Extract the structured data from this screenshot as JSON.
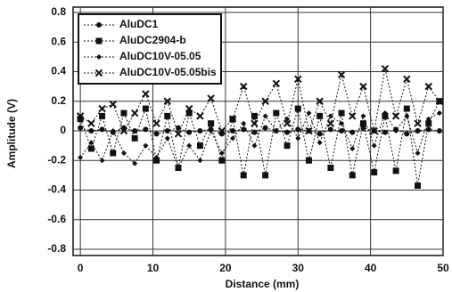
{
  "chart_data": {
    "type": "line",
    "x_label": "Distance (mm)",
    "y_label": "Amplitude (V)",
    "x": [
      0,
      1.5,
      3,
      4.5,
      6,
      7.5,
      9,
      10.5,
      12,
      13.5,
      15,
      16.5,
      18,
      19.5,
      21,
      22.5,
      24,
      25.5,
      27,
      28.5,
      30,
      31.5,
      33,
      34.5,
      36,
      37.5,
      39,
      40.5,
      42,
      43.5,
      45,
      46.5,
      48,
      49.5
    ],
    "series": [
      {
        "name": "AluDC1",
        "color": "#111111",
        "marker": "circle",
        "values": [
          0.02,
          0.0,
          0.01,
          -0.01,
          0.02,
          0.0,
          0.01,
          -0.02,
          0.0,
          0.02,
          -0.01,
          0.0,
          0.01,
          -0.02,
          0.0,
          0.01,
          -0.01,
          0.02,
          0.0,
          -0.01,
          0.01,
          0.0,
          -0.02,
          0.01,
          0.0,
          -0.01,
          0.02,
          0.0,
          -0.01,
          0.01,
          -0.02,
          0.0,
          0.01,
          0.0
        ]
      },
      {
        "name": "AluDC2904-b",
        "color": "#111111",
        "marker": "square",
        "values": [
          0.08,
          -0.12,
          0.1,
          -0.15,
          0.12,
          -0.05,
          0.15,
          -0.2,
          0.1,
          -0.25,
          0.12,
          -0.1,
          0.05,
          -0.2,
          0.08,
          -0.3,
          0.1,
          -0.3,
          0.12,
          -0.1,
          0.15,
          -0.2,
          0.1,
          -0.25,
          0.12,
          -0.3,
          0.05,
          -0.28,
          0.1,
          -0.27,
          0.15,
          -0.37,
          0.05,
          0.2
        ]
      },
      {
        "name": "AluDC10V-05.05",
        "color": "#111111",
        "marker": "diamond",
        "values": [
          -0.18,
          -0.08,
          -0.2,
          0.0,
          -0.15,
          -0.22,
          -0.1,
          -0.18,
          -0.05,
          -0.25,
          -0.1,
          -0.2,
          0.0,
          -0.15,
          -0.05,
          0.05,
          -0.1,
          0.1,
          0.0,
          0.08,
          -0.05,
          0.12,
          -0.08,
          0.1,
          0.05,
          -0.12,
          0.1,
          -0.1,
          0.12,
          0.0,
          0.1,
          -0.15,
          0.08,
          0.12
        ]
      },
      {
        "name": "AluDC10V-05.05bis",
        "color": "#111111",
        "marker": "cross",
        "values": [
          0.1,
          0.05,
          0.15,
          0.18,
          0.0,
          0.12,
          0.25,
          0.05,
          0.2,
          -0.02,
          0.15,
          0.1,
          0.22,
          0.0,
          0.08,
          0.3,
          0.05,
          0.2,
          0.32,
          0.05,
          0.35,
          0.0,
          0.2,
          0.05,
          0.38,
          0.1,
          0.3,
          0.0,
          0.42,
          0.1,
          0.35,
          0.05,
          0.3,
          0.2
        ]
      }
    ],
    "xlim": [
      -1,
      50
    ],
    "xticks": [
      0,
      10,
      20,
      30,
      40,
      50
    ],
    "ylim": [
      -0.8,
      0.8
    ],
    "yticks": [
      0.8,
      0.6,
      0.4,
      0.2,
      0,
      -0.2,
      -0.4,
      -0.6,
      -0.8
    ],
    "grid": true,
    "legend": "upper left"
  }
}
